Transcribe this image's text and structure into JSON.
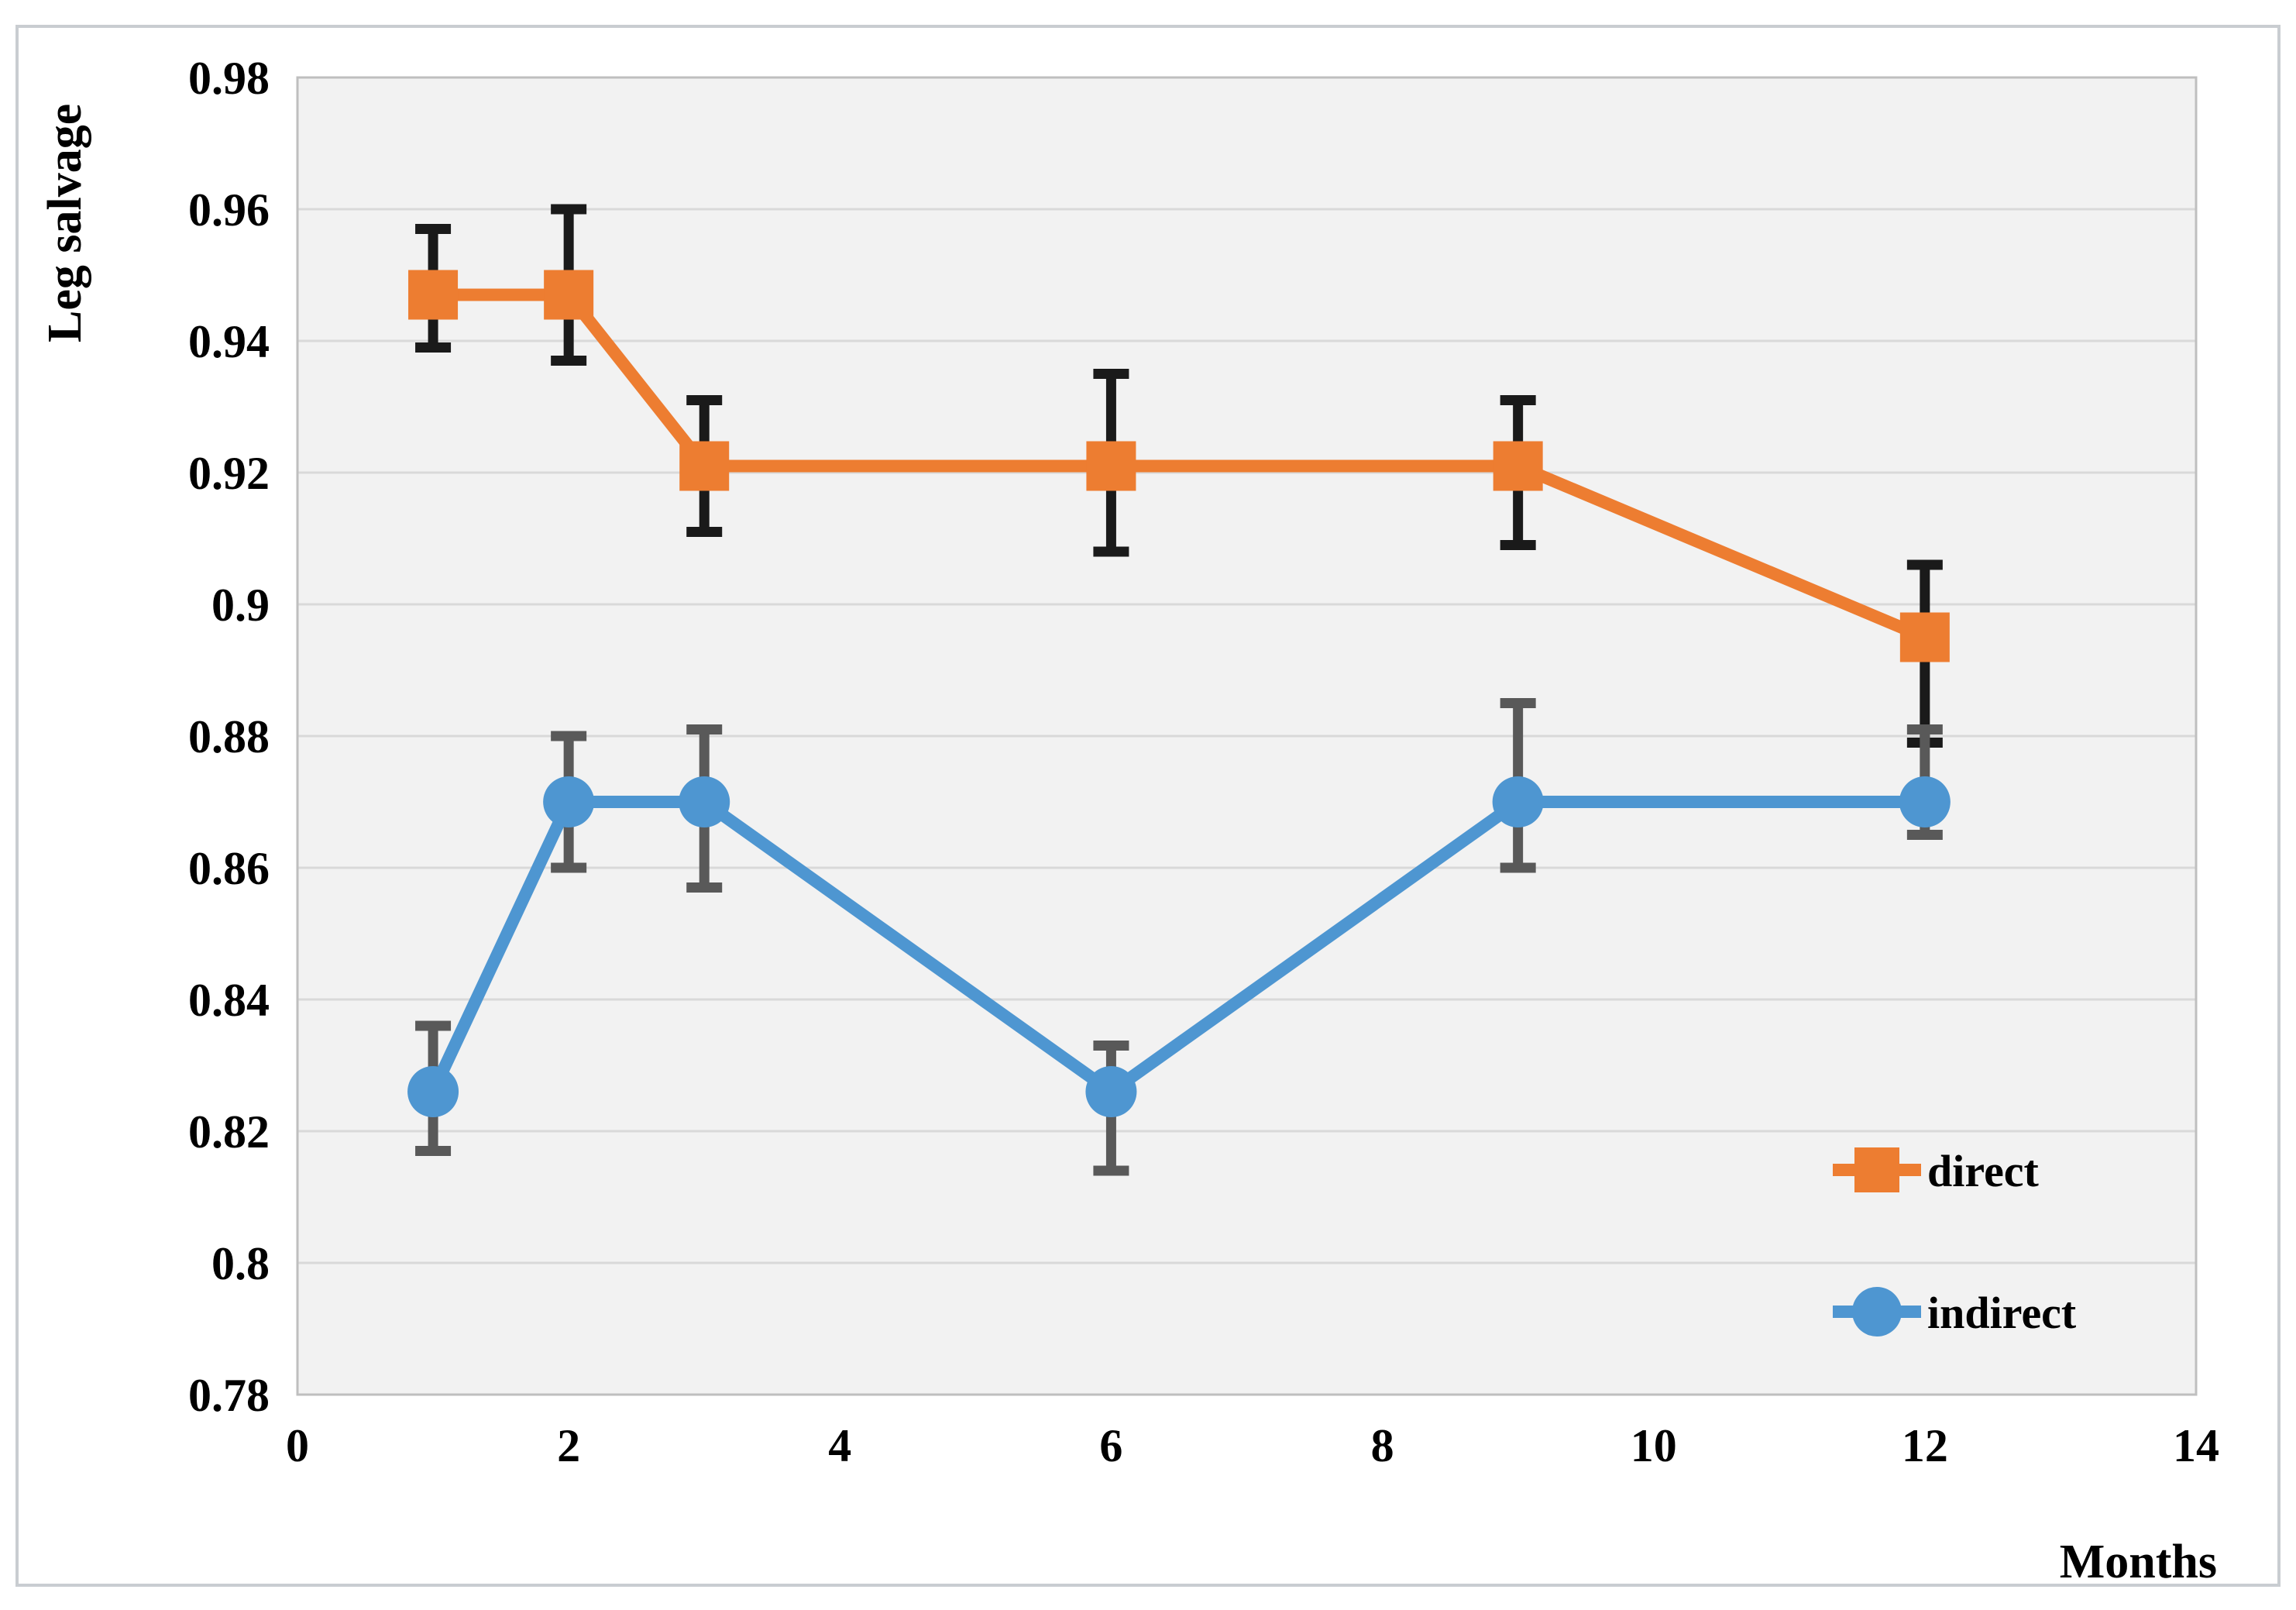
{
  "figure": {
    "background": "#FFFFFF",
    "border_color": "#C9CDD1",
    "plot_background": "#F2F2F2",
    "gridline_color": "#D9D9D9",
    "plot_border_color": "#BFBFBF"
  },
  "chart_data": {
    "type": "line",
    "title": "",
    "xlabel": "Months",
    "ylabel": "Leg salvage",
    "x": [
      1,
      2,
      3,
      6,
      9,
      12
    ],
    "series": [
      {
        "name": "direct",
        "color": "#ED7D31",
        "marker": "square",
        "error_color": "#1A1A1A",
        "values": [
          0.947,
          0.947,
          0.921,
          0.921,
          0.921,
          0.895
        ],
        "error_upper": [
          0.957,
          0.96,
          0.931,
          0.935,
          0.931,
          0.906
        ],
        "error_lower": [
          0.939,
          0.937,
          0.911,
          0.908,
          0.909,
          0.879
        ]
      },
      {
        "name": "indirect",
        "color": "#4E96D1",
        "marker": "circle",
        "error_color": "#595959",
        "values": [
          0.826,
          0.87,
          0.87,
          0.826,
          0.87,
          0.87
        ],
        "error_upper": [
          0.836,
          0.88,
          0.881,
          0.833,
          0.885,
          0.881
        ],
        "error_lower": [
          0.817,
          0.86,
          0.857,
          0.814,
          0.86,
          0.865
        ]
      }
    ],
    "xlim": [
      0,
      14
    ],
    "ylim": [
      0.78,
      0.98
    ],
    "x_ticks": [
      "0",
      "2",
      "4",
      "6",
      "8",
      "10",
      "12",
      "14"
    ],
    "x_tick_values": [
      0,
      2,
      4,
      6,
      8,
      10,
      12,
      14
    ],
    "y_ticks": [
      "0.98",
      "0.96",
      "0.94",
      "0.92",
      "0.9",
      "0.88",
      "0.86",
      "0.84",
      "0.82",
      "0.8",
      "0.78"
    ],
    "y_tick_values": [
      0.98,
      0.96,
      0.94,
      0.92,
      0.9,
      0.88,
      0.86,
      0.84,
      0.82,
      0.8,
      0.78
    ],
    "grid": true,
    "error_bars": true,
    "legend_position": "inside-lower-right",
    "legend": [
      "direct",
      "indirect"
    ]
  }
}
